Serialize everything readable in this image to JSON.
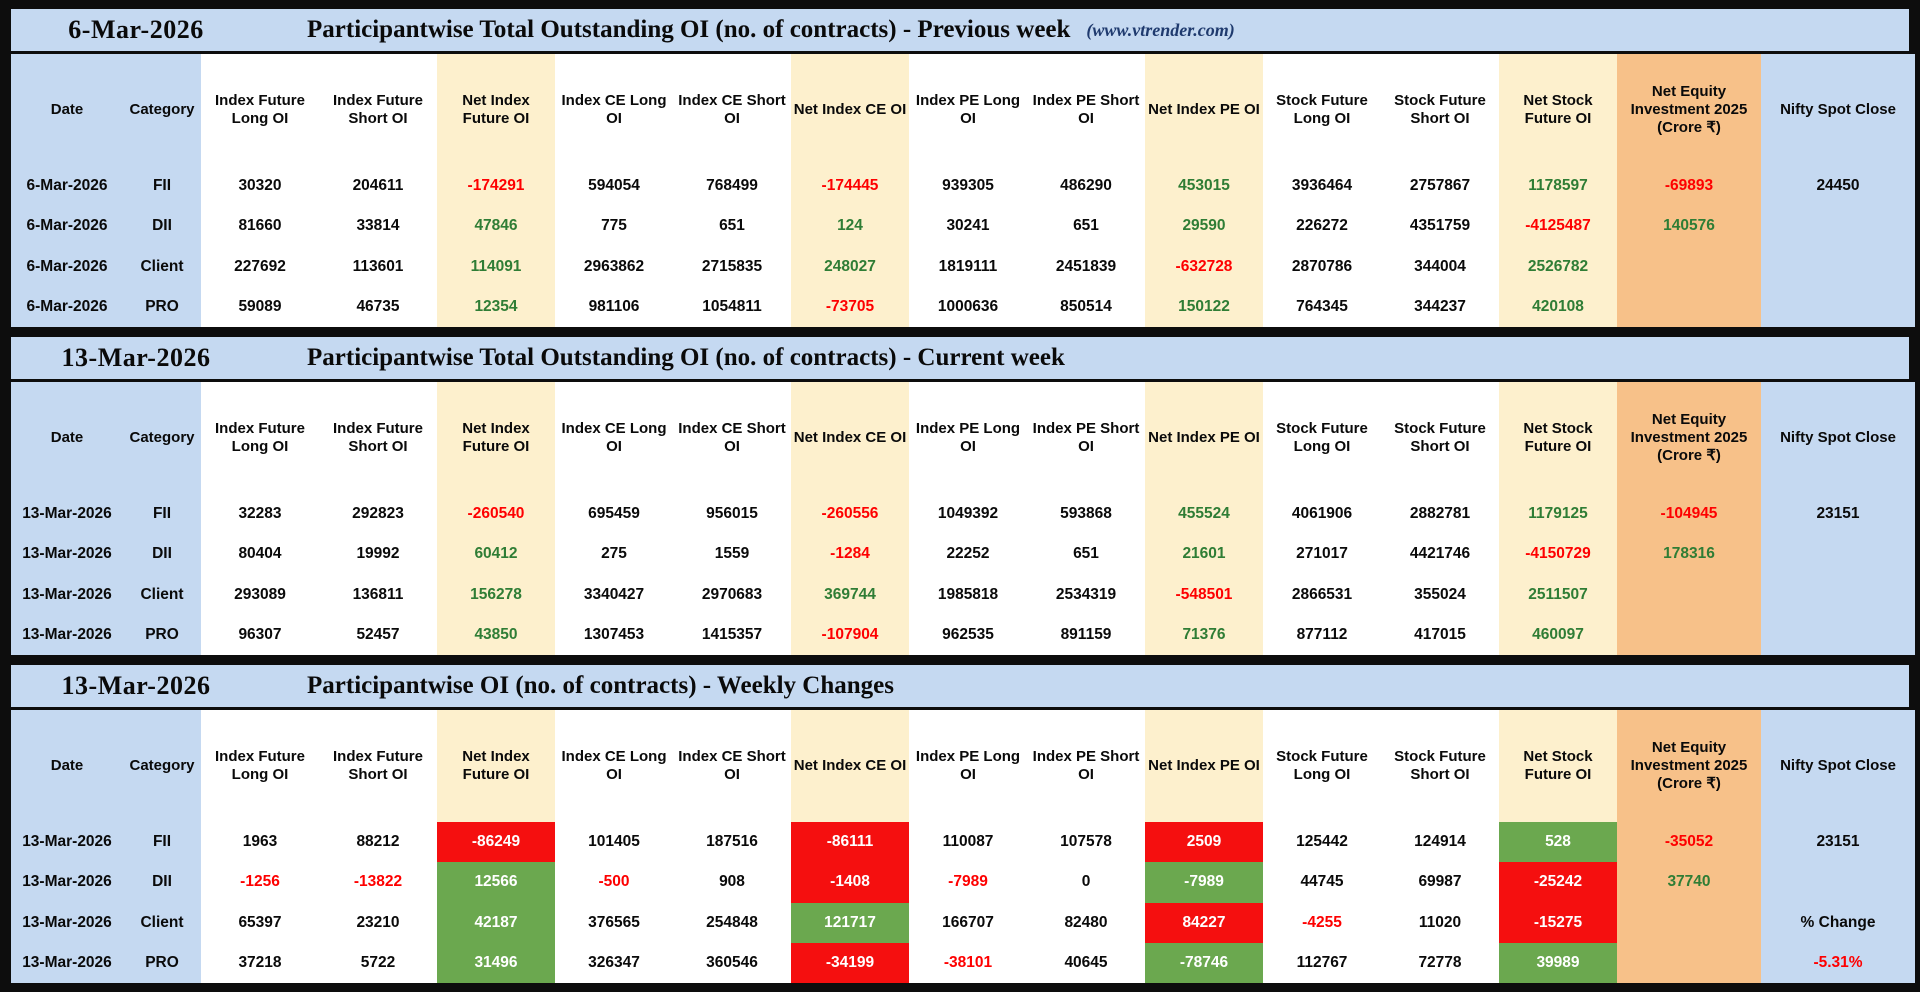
{
  "site_credit": "(www.vtrender.com)",
  "colors": {
    "band_blue": "#c5d9f1",
    "band_cream": "#fdf0cd",
    "band_orange": "#f7c189",
    "fill_red": "#f50f0f",
    "fill_green": "#6ba84f",
    "text_red": "#fe0000",
    "text_green": "#2f7d35"
  },
  "columns": [
    "Date",
    "Category",
    "Index Future Long OI",
    "Index Future Short OI",
    "Net Index Future OI",
    "Index CE Long OI",
    "Index CE Short OI",
    "Net Index CE OI",
    "Index PE Long OI",
    "Index PE Short OI",
    "Net Index PE OI",
    "Stock Future Long OI",
    "Stock Future Short OI",
    "Net Stock Future OI",
    "Net Equity Investment 2025 (Crore ₹)",
    "Nifty Spot Close"
  ],
  "sections": [
    {
      "date": "6-Mar-2026",
      "title": "Participantwise Total Outstanding OI (no. of contracts) - Previous week",
      "site": "(www.vtrender.com)",
      "rows": [
        [
          [
            "6-Mar-2026",
            ""
          ],
          [
            "FII",
            ""
          ],
          [
            "30320",
            ""
          ],
          [
            "204611",
            ""
          ],
          [
            "-174291",
            "r"
          ],
          [
            "594054",
            ""
          ],
          [
            "768499",
            ""
          ],
          [
            "-174445",
            "r"
          ],
          [
            "939305",
            ""
          ],
          [
            "486290",
            ""
          ],
          [
            "453015",
            "g"
          ],
          [
            "3936464",
            ""
          ],
          [
            "2757867",
            ""
          ],
          [
            "1178597",
            "g"
          ],
          [
            "-69893",
            "r"
          ],
          [
            "24450",
            ""
          ]
        ],
        [
          [
            "6-Mar-2026",
            ""
          ],
          [
            "DII",
            ""
          ],
          [
            "81660",
            ""
          ],
          [
            "33814",
            ""
          ],
          [
            "47846",
            "g"
          ],
          [
            "775",
            ""
          ],
          [
            "651",
            ""
          ],
          [
            "124",
            "g"
          ],
          [
            "30241",
            ""
          ],
          [
            "651",
            ""
          ],
          [
            "29590",
            "g"
          ],
          [
            "226272",
            ""
          ],
          [
            "4351759",
            ""
          ],
          [
            "-4125487",
            "r"
          ],
          [
            "140576",
            "g"
          ],
          [
            "",
            ""
          ]
        ],
        [
          [
            "6-Mar-2026",
            ""
          ],
          [
            "Client",
            ""
          ],
          [
            "227692",
            ""
          ],
          [
            "113601",
            ""
          ],
          [
            "114091",
            "g"
          ],
          [
            "2963862",
            ""
          ],
          [
            "2715835",
            ""
          ],
          [
            "248027",
            "g"
          ],
          [
            "1819111",
            ""
          ],
          [
            "2451839",
            ""
          ],
          [
            "-632728",
            "r"
          ],
          [
            "2870786",
            ""
          ],
          [
            "344004",
            ""
          ],
          [
            "2526782",
            "g"
          ],
          [
            "",
            ""
          ],
          [
            "",
            ""
          ]
        ],
        [
          [
            "6-Mar-2026",
            ""
          ],
          [
            "PRO",
            ""
          ],
          [
            "59089",
            ""
          ],
          [
            "46735",
            ""
          ],
          [
            "12354",
            "g"
          ],
          [
            "981106",
            ""
          ],
          [
            "1054811",
            ""
          ],
          [
            "-73705",
            "r"
          ],
          [
            "1000636",
            ""
          ],
          [
            "850514",
            ""
          ],
          [
            "150122",
            "g"
          ],
          [
            "764345",
            ""
          ],
          [
            "344237",
            ""
          ],
          [
            "420108",
            "g"
          ],
          [
            "",
            ""
          ],
          [
            "",
            ""
          ]
        ]
      ]
    },
    {
      "date": "13-Mar-2026",
      "title": "Participantwise Total Outstanding OI (no. of contracts) - Current week",
      "site": "",
      "rows": [
        [
          [
            "13-Mar-2026",
            ""
          ],
          [
            "FII",
            ""
          ],
          [
            "32283",
            ""
          ],
          [
            "292823",
            ""
          ],
          [
            "-260540",
            "r"
          ],
          [
            "695459",
            ""
          ],
          [
            "956015",
            ""
          ],
          [
            "-260556",
            "r"
          ],
          [
            "1049392",
            ""
          ],
          [
            "593868",
            ""
          ],
          [
            "455524",
            "g"
          ],
          [
            "4061906",
            ""
          ],
          [
            "2882781",
            ""
          ],
          [
            "1179125",
            "g"
          ],
          [
            "-104945",
            "r"
          ],
          [
            "23151",
            ""
          ]
        ],
        [
          [
            "13-Mar-2026",
            ""
          ],
          [
            "DII",
            ""
          ],
          [
            "80404",
            ""
          ],
          [
            "19992",
            ""
          ],
          [
            "60412",
            "g"
          ],
          [
            "275",
            ""
          ],
          [
            "1559",
            ""
          ],
          [
            "-1284",
            "r"
          ],
          [
            "22252",
            ""
          ],
          [
            "651",
            ""
          ],
          [
            "21601",
            "g"
          ],
          [
            "271017",
            ""
          ],
          [
            "4421746",
            ""
          ],
          [
            "-4150729",
            "r"
          ],
          [
            "178316",
            "g"
          ],
          [
            "",
            ""
          ]
        ],
        [
          [
            "13-Mar-2026",
            ""
          ],
          [
            "Client",
            ""
          ],
          [
            "293089",
            ""
          ],
          [
            "136811",
            ""
          ],
          [
            "156278",
            "g"
          ],
          [
            "3340427",
            ""
          ],
          [
            "2970683",
            ""
          ],
          [
            "369744",
            "g"
          ],
          [
            "1985818",
            ""
          ],
          [
            "2534319",
            ""
          ],
          [
            "-548501",
            "r"
          ],
          [
            "2866531",
            ""
          ],
          [
            "355024",
            ""
          ],
          [
            "2511507",
            "g"
          ],
          [
            "",
            ""
          ],
          [
            "",
            ""
          ]
        ],
        [
          [
            "13-Mar-2026",
            ""
          ],
          [
            "PRO",
            ""
          ],
          [
            "96307",
            ""
          ],
          [
            "52457",
            ""
          ],
          [
            "43850",
            "g"
          ],
          [
            "1307453",
            ""
          ],
          [
            "1415357",
            ""
          ],
          [
            "-107904",
            "r"
          ],
          [
            "962535",
            ""
          ],
          [
            "891159",
            ""
          ],
          [
            "71376",
            "g"
          ],
          [
            "877112",
            ""
          ],
          [
            "417015",
            ""
          ],
          [
            "460097",
            "g"
          ],
          [
            "",
            ""
          ],
          [
            "",
            ""
          ]
        ]
      ]
    },
    {
      "date": "13-Mar-2026",
      "title": "Participantwise OI (no. of contracts) - Weekly Changes",
      "site": "",
      "rows": [
        [
          [
            "13-Mar-2026",
            ""
          ],
          [
            "FII",
            ""
          ],
          [
            "1963",
            ""
          ],
          [
            "88212",
            ""
          ],
          [
            "-86249",
            "R"
          ],
          [
            "101405",
            ""
          ],
          [
            "187516",
            ""
          ],
          [
            "-86111",
            "R"
          ],
          [
            "110087",
            ""
          ],
          [
            "107578",
            ""
          ],
          [
            "2509",
            "R"
          ],
          [
            "125442",
            ""
          ],
          [
            "124914",
            ""
          ],
          [
            "528",
            "G"
          ],
          [
            "-35052",
            "r"
          ],
          [
            "23151",
            ""
          ]
        ],
        [
          [
            "13-Mar-2026",
            ""
          ],
          [
            "DII",
            ""
          ],
          [
            "-1256",
            "r"
          ],
          [
            "-13822",
            "r"
          ],
          [
            "12566",
            "G"
          ],
          [
            "-500",
            "r"
          ],
          [
            "908",
            ""
          ],
          [
            "-1408",
            "R"
          ],
          [
            "-7989",
            "r"
          ],
          [
            "0",
            ""
          ],
          [
            "-7989",
            "G"
          ],
          [
            "44745",
            ""
          ],
          [
            "69987",
            ""
          ],
          [
            "-25242",
            "R"
          ],
          [
            "37740",
            "g"
          ],
          [
            "",
            ""
          ]
        ],
        [
          [
            "13-Mar-2026",
            ""
          ],
          [
            "Client",
            ""
          ],
          [
            "65397",
            ""
          ],
          [
            "23210",
            ""
          ],
          [
            "42187",
            "G"
          ],
          [
            "376565",
            ""
          ],
          [
            "254848",
            ""
          ],
          [
            "121717",
            "G"
          ],
          [
            "166707",
            ""
          ],
          [
            "82480",
            ""
          ],
          [
            "84227",
            "R"
          ],
          [
            "-4255",
            "r"
          ],
          [
            "11020",
            ""
          ],
          [
            "-15275",
            "R"
          ],
          [
            "",
            ""
          ],
          [
            "% Change",
            ""
          ]
        ],
        [
          [
            "13-Mar-2026",
            ""
          ],
          [
            "PRO",
            ""
          ],
          [
            "37218",
            ""
          ],
          [
            "5722",
            ""
          ],
          [
            "31496",
            "G"
          ],
          [
            "326347",
            ""
          ],
          [
            "360546",
            ""
          ],
          [
            "-34199",
            "R"
          ],
          [
            "-38101",
            "r"
          ],
          [
            "40645",
            ""
          ],
          [
            "-78746",
            "G"
          ],
          [
            "112767",
            ""
          ],
          [
            "72778",
            ""
          ],
          [
            "39989",
            "G"
          ],
          [
            "",
            ""
          ],
          [
            "-5.31%",
            "r"
          ]
        ]
      ]
    }
  ]
}
